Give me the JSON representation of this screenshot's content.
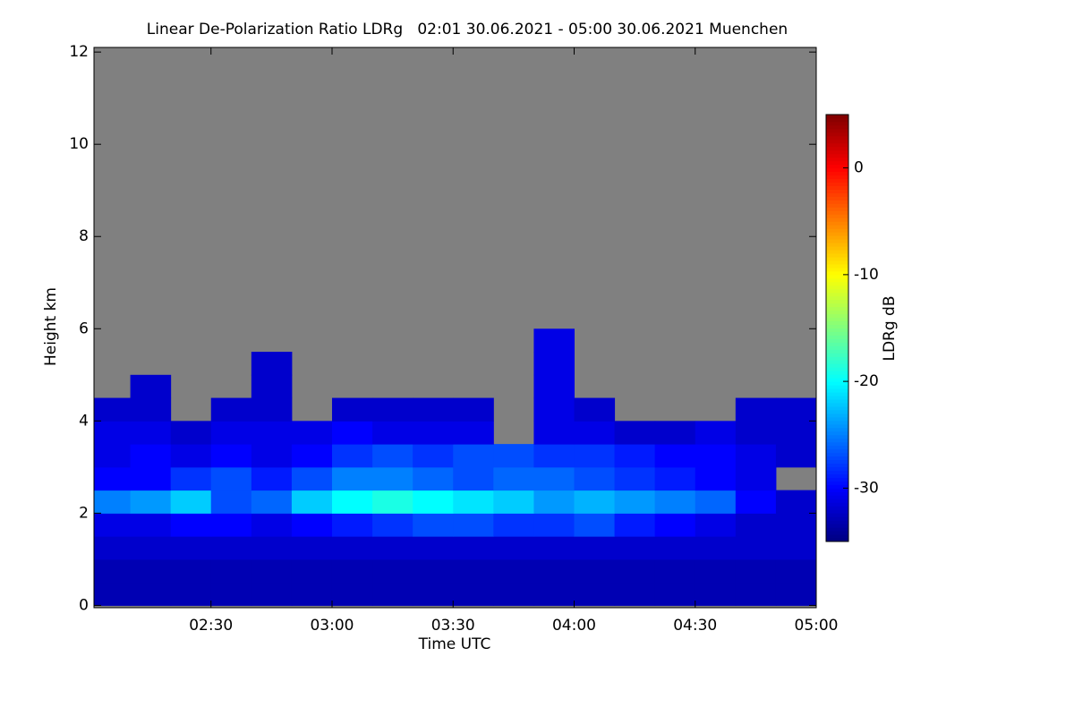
{
  "chart_data": {
    "type": "heatmap",
    "title": "Linear De-Polarization Ratio LDRg   02:01 30.06.2021 - 05:00 30.06.2021 Muenchen",
    "x_label": "Time UTC",
    "y_label": "Height km",
    "colorbar_label": "LDRg dB",
    "xlim": [
      121,
      300
    ],
    "xticks": [
      {
        "value": 150,
        "label": "02:30"
      },
      {
        "value": 180,
        "label": "03:00"
      },
      {
        "value": 210,
        "label": "03:30"
      },
      {
        "value": 240,
        "label": "04:00"
      },
      {
        "value": 270,
        "label": "04:30"
      },
      {
        "value": 300,
        "label": "05:00"
      }
    ],
    "ylim": [
      -0.05,
      12.1
    ],
    "yticks": [
      0,
      2,
      4,
      6,
      8,
      10,
      12
    ],
    "clim": [
      -35,
      5
    ],
    "cticks": [
      0,
      -10,
      -20,
      -30
    ],
    "colormap": "jet",
    "no_data_color": "#808080",
    "x_edges": [
      121,
      130,
      140,
      150,
      160,
      170,
      180,
      190,
      200,
      210,
      220,
      230,
      240,
      250,
      260,
      270,
      280,
      290,
      300
    ],
    "y_edges": [
      0,
      0.5,
      1,
      1.5,
      2,
      2.5,
      3,
      3.5,
      4,
      4.5,
      5,
      5.5,
      6
    ],
    "z": [
      [
        -33,
        -33,
        -33,
        -33,
        -33,
        -33,
        -33,
        -33,
        -33,
        -33,
        -33,
        -33,
        -33,
        -33,
        -33,
        -33,
        -33,
        -33
      ],
      [
        -33,
        -33,
        -33,
        -33,
        -33,
        -33,
        -33,
        -33,
        -33,
        -33,
        -33,
        -33,
        -33,
        -33,
        -33,
        -33,
        -33,
        -33
      ],
      [
        -32,
        -32,
        -32,
        -32,
        -32,
        -32,
        -32,
        -32,
        -32,
        -32,
        -32,
        -32,
        -32,
        -32,
        -32,
        -32,
        -32,
        -32
      ],
      [
        -31,
        -31,
        -30,
        -30,
        -31,
        -30,
        -29,
        -28,
        -27,
        -27,
        -28,
        -28,
        -27,
        -29,
        -30,
        -31,
        -32,
        -32
      ],
      [
        -25,
        -24,
        -22,
        -27,
        -26,
        -22,
        -20,
        -19,
        -20,
        -21,
        -22,
        -24,
        -23,
        -24,
        -25,
        -26,
        -30,
        -32
      ],
      [
        -30,
        -30,
        -28,
        -27,
        -29,
        -27,
        -25,
        -25,
        -26,
        -27,
        -26,
        -26,
        -27,
        -28,
        -29,
        -30,
        -31,
        null
      ],
      [
        -31,
        -30,
        -31,
        -30,
        -31,
        -30,
        -28,
        -27,
        -28,
        -27,
        -27,
        -28,
        -28,
        -29,
        -30,
        -30,
        -31,
        -32
      ],
      [
        -31,
        -31,
        -32,
        -31,
        -31,
        -31,
        -30,
        -31,
        -31,
        -31,
        null,
        -31,
        -31,
        -32,
        -32,
        -31,
        -32,
        -32
      ],
      [
        -32,
        -32,
        null,
        -32,
        -32,
        null,
        -32,
        -32,
        -32,
        -32,
        null,
        -31,
        -32,
        null,
        null,
        null,
        -32,
        -32
      ],
      [
        null,
        -32,
        null,
        null,
        -32,
        null,
        null,
        null,
        null,
        null,
        null,
        -31,
        null,
        null,
        null,
        null,
        null,
        null
      ],
      [
        null,
        null,
        null,
        null,
        -32,
        null,
        null,
        null,
        null,
        null,
        null,
        -31,
        null,
        null,
        null,
        null,
        null,
        null
      ],
      [
        null,
        null,
        null,
        null,
        null,
        null,
        null,
        null,
        null,
        null,
        null,
        -31,
        null,
        null,
        null,
        null,
        null,
        null
      ]
    ]
  }
}
